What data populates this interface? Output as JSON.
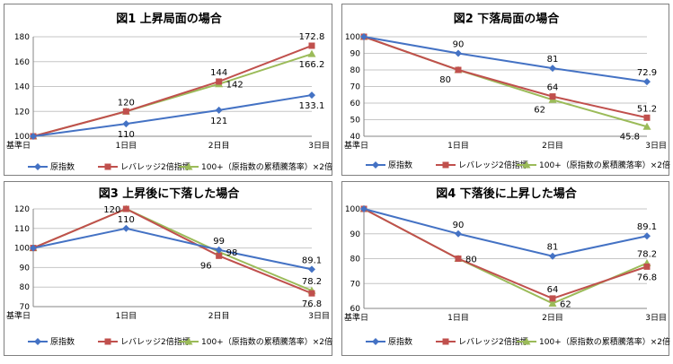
{
  "colors": {
    "base": "#4472c4",
    "lev": "#c0504d",
    "cum": "#9bbb59"
  },
  "charts": [
    {
      "id": "chart1",
      "type": "line",
      "title": "図1 上昇局面の場合",
      "categories": [
        "基準日",
        "1日目",
        "2日目",
        "3日目"
      ],
      "ylim": [
        100,
        180
      ],
      "yticks": [
        100,
        120,
        140,
        160,
        180
      ],
      "series": [
        {
          "key": "base",
          "name": "原指数",
          "values": [
            100,
            110,
            121,
            133.1
          ]
        },
        {
          "key": "lev",
          "name": "レバレッジ2倍指標",
          "values": [
            100,
            120,
            144,
            172.8
          ]
        },
        {
          "key": "cum",
          "name": "100+（原指数の累積騰落率）×2倍",
          "values": [
            100,
            120,
            142,
            166.2
          ]
        }
      ],
      "labels": [
        {
          "text": "110",
          "series": "base",
          "i": 1,
          "pos": "below"
        },
        {
          "text": "121",
          "series": "base",
          "i": 2,
          "pos": "below"
        },
        {
          "text": "133.1",
          "series": "base",
          "i": 3,
          "pos": "below"
        },
        {
          "text": "120",
          "series": "lev",
          "i": 1,
          "pos": "above"
        },
        {
          "text": "144",
          "series": "lev",
          "i": 2,
          "pos": "above"
        },
        {
          "text": "172.8",
          "series": "lev",
          "i": 3,
          "pos": "above"
        },
        {
          "text": "142",
          "series": "cum",
          "i": 2,
          "pos": "right"
        },
        {
          "text": "166.2",
          "series": "cum",
          "i": 3,
          "pos": "below"
        }
      ]
    },
    {
      "id": "chart2",
      "type": "line",
      "title": "図2 下落局面の場合",
      "categories": [
        "基準日",
        "1日目",
        "2日目",
        "3日目"
      ],
      "ylim": [
        40,
        100
      ],
      "yticks": [
        40,
        50,
        60,
        70,
        80,
        90,
        100
      ],
      "series": [
        {
          "key": "base",
          "name": "原指数",
          "values": [
            100,
            90,
            81,
            72.9
          ]
        },
        {
          "key": "lev",
          "name": "レバレッジ2倍指標",
          "values": [
            100,
            80,
            64,
            51.2
          ]
        },
        {
          "key": "cum",
          "name": "100+（原指数の累積騰落率）×2倍",
          "values": [
            100,
            80,
            62,
            45.8
          ]
        }
      ],
      "labels": [
        {
          "text": "90",
          "series": "base",
          "i": 1,
          "pos": "above"
        },
        {
          "text": "81",
          "series": "base",
          "i": 2,
          "pos": "above"
        },
        {
          "text": "72.9",
          "series": "base",
          "i": 3,
          "pos": "above"
        },
        {
          "text": "80",
          "series": "lev",
          "i": 1,
          "pos": "belowleft"
        },
        {
          "text": "64",
          "series": "lev",
          "i": 2,
          "pos": "above"
        },
        {
          "text": "51.2",
          "series": "lev",
          "i": 3,
          "pos": "above"
        },
        {
          "text": "62",
          "series": "cum",
          "i": 2,
          "pos": "belowleft"
        },
        {
          "text": "45.8",
          "series": "cum",
          "i": 3,
          "pos": "belowleft"
        }
      ]
    },
    {
      "id": "chart3",
      "type": "line",
      "title": "図3 上昇後に下落した場合",
      "categories": [
        "基準日",
        "1日目",
        "2日目",
        "3日目"
      ],
      "ylim": [
        70,
        120
      ],
      "yticks": [
        70,
        80,
        90,
        100,
        110,
        120
      ],
      "series": [
        {
          "key": "base",
          "name": "原指数",
          "values": [
            100,
            110,
            99,
            89.1
          ]
        },
        {
          "key": "lev",
          "name": "レバレッジ2倍指標",
          "values": [
            100,
            120,
            96,
            76.8
          ]
        },
        {
          "key": "cum",
          "name": "100+（原指数の累積騰落率）×2倍",
          "values": [
            100,
            120,
            98,
            78.2
          ]
        }
      ],
      "labels": [
        {
          "text": "120",
          "series": "lev",
          "i": 1,
          "pos": "left"
        },
        {
          "text": "110",
          "series": "base",
          "i": 1,
          "pos": "above"
        },
        {
          "text": "99",
          "series": "base",
          "i": 2,
          "pos": "above"
        },
        {
          "text": "96",
          "series": "lev",
          "i": 2,
          "pos": "belowleft"
        },
        {
          "text": "98",
          "series": "cum",
          "i": 2,
          "pos": "right"
        },
        {
          "text": "89.1",
          "series": "base",
          "i": 3,
          "pos": "above"
        },
        {
          "text": "78.2",
          "series": "cum",
          "i": 3,
          "pos": "above"
        },
        {
          "text": "76.8",
          "series": "lev",
          "i": 3,
          "pos": "below"
        }
      ]
    },
    {
      "id": "chart4",
      "type": "line",
      "title": "図4 下落後に上昇した場合",
      "categories": [
        "基準日",
        "1日目",
        "2日目",
        "3日目"
      ],
      "ylim": [
        60,
        100
      ],
      "yticks": [
        60,
        70,
        80,
        90,
        100
      ],
      "series": [
        {
          "key": "base",
          "name": "原指数",
          "values": [
            100,
            90,
            81,
            89.1
          ]
        },
        {
          "key": "lev",
          "name": "レバレッジ2倍指標",
          "values": [
            100,
            80,
            64,
            76.8
          ]
        },
        {
          "key": "cum",
          "name": "100+（原指数の累積騰落率）×2倍",
          "values": [
            100,
            80,
            62,
            78.2
          ]
        }
      ],
      "labels": [
        {
          "text": "90",
          "series": "base",
          "i": 1,
          "pos": "above"
        },
        {
          "text": "80",
          "series": "lev",
          "i": 1,
          "pos": "right"
        },
        {
          "text": "81",
          "series": "base",
          "i": 2,
          "pos": "above"
        },
        {
          "text": "64",
          "series": "lev",
          "i": 2,
          "pos": "above"
        },
        {
          "text": "62",
          "series": "cum",
          "i": 2,
          "pos": "right"
        },
        {
          "text": "89.1",
          "series": "base",
          "i": 3,
          "pos": "above"
        },
        {
          "text": "78.2",
          "series": "cum",
          "i": 3,
          "pos": "above"
        },
        {
          "text": "76.8",
          "series": "lev",
          "i": 3,
          "pos": "below"
        }
      ]
    }
  ],
  "legend_items": [
    {
      "key": "base",
      "label": "原指数"
    },
    {
      "key": "lev",
      "label": "レバレッジ2倍指標"
    },
    {
      "key": "cum",
      "label": "100+（原指数の累積騰落率）×2倍"
    }
  ]
}
